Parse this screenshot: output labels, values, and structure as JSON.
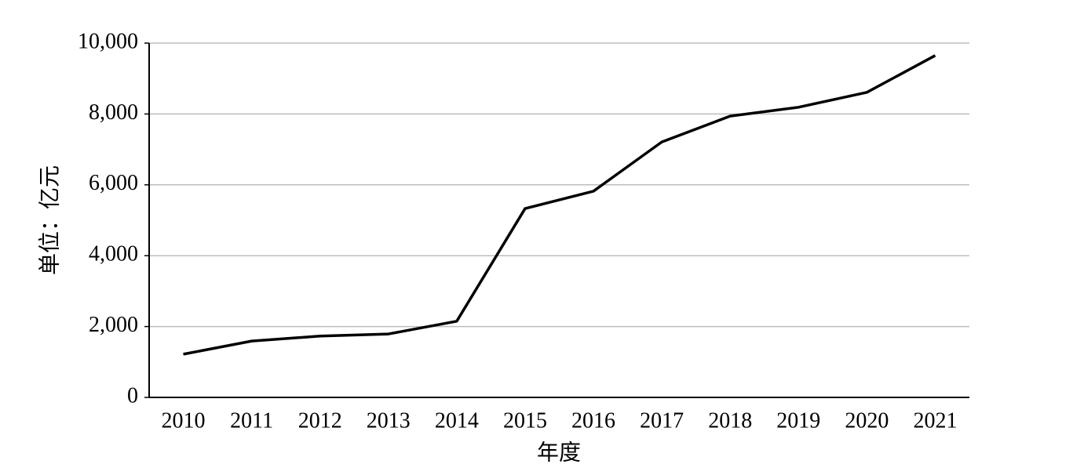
{
  "chart_data": {
    "type": "line",
    "xlabel": "年度",
    "ylabel": "单位：亿元",
    "categories": [
      "2010",
      "2011",
      "2012",
      "2013",
      "2014",
      "2015",
      "2016",
      "2017",
      "2018",
      "2019",
      "2020",
      "2021"
    ],
    "values": [
      1220,
      1590,
      1730,
      1790,
      2150,
      5330,
      5820,
      7210,
      7940,
      8190,
      8610,
      9650
    ],
    "color": "#000000",
    "ylim": [
      0,
      10000
    ],
    "yticks": [
      0,
      {
        "value": 2000,
        "label": "2,000"
      },
      {
        "value": 4000,
        "label": "4,000"
      },
      {
        "value": 6000,
        "label": "6,000"
      },
      {
        "value": 8000,
        "label": "8,000"
      },
      {
        "value": 10000,
        "label": "10,000"
      }
    ],
    "grid": true
  }
}
